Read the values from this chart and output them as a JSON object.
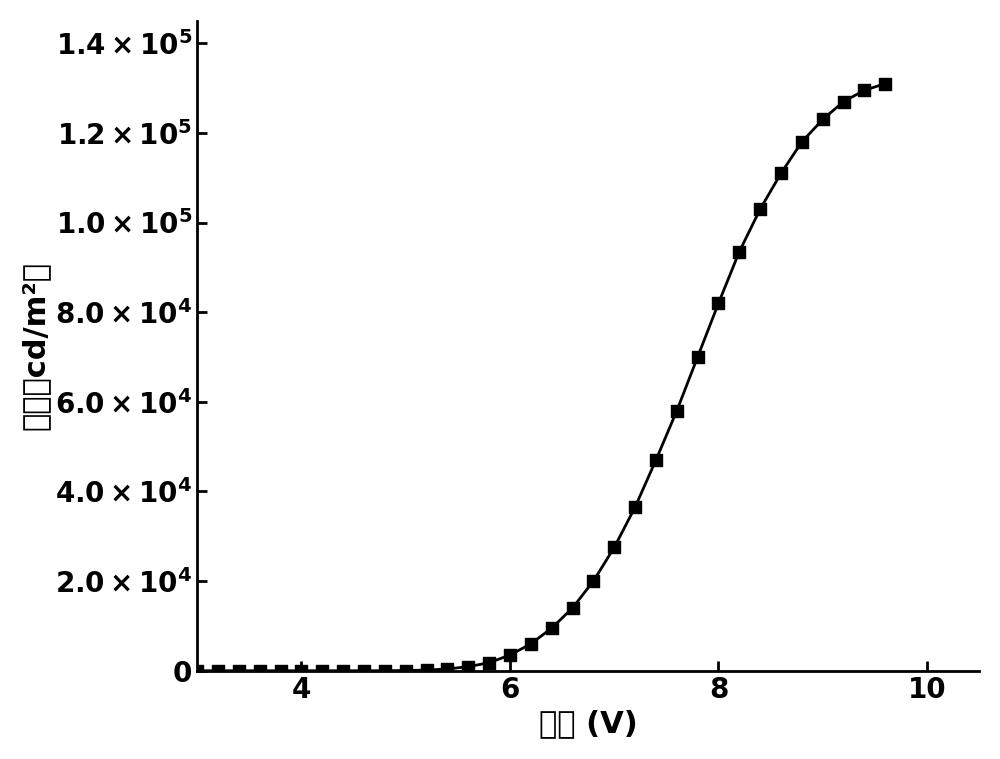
{
  "xlabel": "电压 (V)",
  "ylabel": "亮度（cd/m²）",
  "xlim": [
    3.0,
    10.5
  ],
  "ylim": [
    0,
    145000
  ],
  "xticks": [
    4,
    6,
    8,
    10
  ],
  "yticks": [
    0,
    20000,
    40000,
    60000,
    80000,
    100000,
    120000,
    140000
  ],
  "marker_color": "#000000",
  "line_color": "#000000",
  "background_color": "#ffffff",
  "xlabel_fontsize": 22,
  "ylabel_fontsize": 22,
  "tick_fontsize": 20,
  "marker_size": 9,
  "line_width": 2.0,
  "voltage_data": [
    3.0,
    3.2,
    3.4,
    3.6,
    3.8,
    4.0,
    4.2,
    4.4,
    4.6,
    4.8,
    5.0,
    5.2,
    5.4,
    5.6,
    5.8,
    6.0,
    6.2,
    6.4,
    6.6,
    6.8,
    7.0,
    7.2,
    7.4,
    7.6,
    7.8,
    8.0,
    8.2,
    8.4,
    8.6,
    8.8,
    9.0,
    9.2,
    9.4,
    9.6
  ],
  "brightness_data": [
    0,
    0,
    0,
    0,
    0,
    0,
    0,
    0,
    0,
    10,
    50,
    150,
    400,
    900,
    1800,
    3500,
    6000,
    9500,
    14000,
    20000,
    27500,
    36500,
    47000,
    58000,
    70000,
    82000,
    93500,
    103000,
    111000,
    118000,
    123000,
    127000,
    129500,
    131000
  ]
}
